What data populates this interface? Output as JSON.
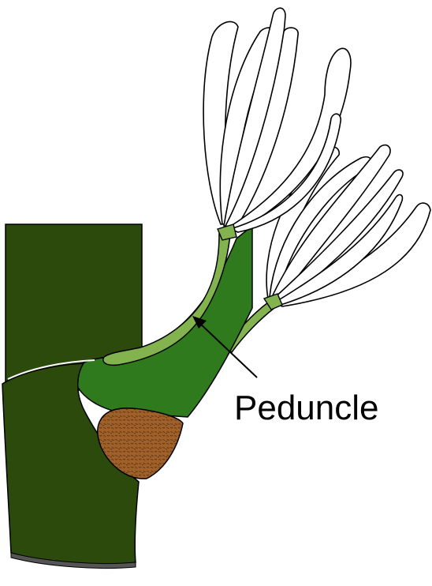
{
  "diagram": {
    "labels": {
      "peduncle": "Peduncle"
    },
    "colors": {
      "dark_stem": "#2b4a0c",
      "leaf_green": "#2f7a1c",
      "peduncle_green": "#82b34e",
      "bud_brown": "#a0602a",
      "petal_white": "#ffffff",
      "outline": "#000000"
    }
  }
}
